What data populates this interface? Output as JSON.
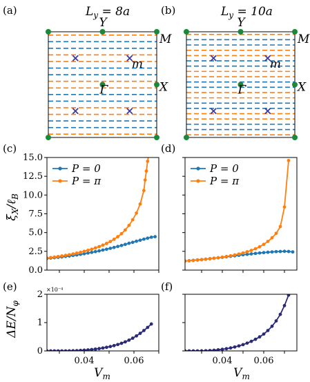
{
  "colors": {
    "blue": "#1f77b4",
    "orange": "#ff7f0e",
    "navy": "#2a2a78",
    "cross": "#3b3b9a",
    "green": "#1a8a3a"
  },
  "bz_panels": [
    {
      "label": "(a)",
      "title": "L_y = 8a",
      "lines": [
        "orange",
        "blue",
        "blue",
        "orange",
        "orange",
        "blue",
        "blue",
        "orange",
        "orange",
        "blue",
        "blue",
        "orange",
        "orange",
        "blue",
        "blue",
        "orange"
      ],
      "points": {
        "Y": "Y",
        "M": "M",
        "X": "X",
        "Gamma": "Γ",
        "m": "m"
      }
    },
    {
      "label": "(b)",
      "title": "L_y = 10a",
      "lines": [
        "orange",
        "blue",
        "blue",
        "orange",
        "orange",
        "blue",
        "blue",
        "orange",
        "orange",
        "blue",
        "blue",
        "orange",
        "orange",
        "blue",
        "blue",
        "orange",
        "orange",
        "blue",
        "blue",
        "orange"
      ],
      "points": {
        "Y": "Y",
        "M": "M",
        "X": "X",
        "Gamma": "Γ",
        "m": "m"
      }
    }
  ],
  "chart_data": [
    {
      "type": "line",
      "panel": "(c)",
      "ylabel": "ξ_X / ℓ_B",
      "xlim": [
        0.025,
        0.07
      ],
      "ylim": [
        0,
        15
      ],
      "yticks": [
        "0.0",
        "2.5",
        "5.0",
        "7.5",
        "10.0",
        "12.5",
        "15.0"
      ],
      "xticks": [],
      "legend": "top-left",
      "series": [
        {
          "name": "P = 0",
          "color": "blue",
          "x": [
            0.025,
            0.0265,
            0.028,
            0.0295,
            0.031,
            0.0325,
            0.034,
            0.0355,
            0.037,
            0.0385,
            0.04,
            0.0415,
            0.043,
            0.0445,
            0.046,
            0.0475,
            0.049,
            0.0505,
            0.052,
            0.0535,
            0.055,
            0.0565,
            0.058,
            0.0595,
            0.061,
            0.0625,
            0.064,
            0.0655,
            0.067,
            0.0685
          ],
          "y": [
            1.55,
            1.6,
            1.65,
            1.7,
            1.75,
            1.82,
            1.88,
            1.95,
            2.02,
            2.1,
            2.18,
            2.27,
            2.36,
            2.46,
            2.56,
            2.67,
            2.78,
            2.9,
            3.02,
            3.15,
            3.28,
            3.42,
            3.57,
            3.7,
            3.85,
            3.98,
            4.12,
            4.25,
            4.38,
            4.45
          ]
        },
        {
          "name": "P = π",
          "color": "orange",
          "x": [
            0.025,
            0.0265,
            0.028,
            0.0295,
            0.031,
            0.0325,
            0.034,
            0.0355,
            0.037,
            0.0385,
            0.04,
            0.0415,
            0.043,
            0.0445,
            0.046,
            0.0475,
            0.049,
            0.0505,
            0.052,
            0.0535,
            0.055,
            0.0565,
            0.058,
            0.0595,
            0.061,
            0.0625,
            0.064,
            0.0645,
            0.065,
            0.0655,
            0.066
          ],
          "y": [
            1.6,
            1.66,
            1.73,
            1.8,
            1.88,
            1.96,
            2.05,
            2.15,
            2.26,
            2.37,
            2.5,
            2.63,
            2.78,
            2.95,
            3.13,
            3.33,
            3.55,
            3.8,
            4.1,
            4.45,
            4.85,
            5.35,
            5.95,
            6.7,
            7.6,
            8.8,
            10.6,
            12.0,
            13.2,
            14.5,
            15.5
          ]
        }
      ]
    },
    {
      "type": "line",
      "panel": "(d)",
      "xlim": [
        0.022,
        0.076
      ],
      "ylim": [
        0,
        15
      ],
      "yticks": [],
      "xticks": [],
      "legend": "top-left",
      "series": [
        {
          "name": "P = 0",
          "color": "blue",
          "x": [
            0.022,
            0.024,
            0.026,
            0.028,
            0.03,
            0.032,
            0.034,
            0.036,
            0.038,
            0.04,
            0.042,
            0.044,
            0.046,
            0.048,
            0.05,
            0.052,
            0.054,
            0.056,
            0.058,
            0.06,
            0.062,
            0.064,
            0.066,
            0.068,
            0.07,
            0.072,
            0.074
          ],
          "y": [
            1.2,
            1.25,
            1.3,
            1.35,
            1.4,
            1.46,
            1.52,
            1.58,
            1.64,
            1.7,
            1.77,
            1.84,
            1.9,
            1.97,
            2.04,
            2.1,
            2.16,
            2.22,
            2.28,
            2.33,
            2.38,
            2.42,
            2.46,
            2.48,
            2.5,
            2.48,
            2.42
          ]
        },
        {
          "name": "P = π",
          "color": "orange",
          "x": [
            0.022,
            0.024,
            0.026,
            0.028,
            0.03,
            0.032,
            0.034,
            0.036,
            0.038,
            0.04,
            0.042,
            0.044,
            0.046,
            0.048,
            0.05,
            0.052,
            0.054,
            0.056,
            0.058,
            0.06,
            0.062,
            0.064,
            0.066,
            0.068,
            0.07,
            0.072
          ],
          "y": [
            1.2,
            1.24,
            1.28,
            1.33,
            1.38,
            1.44,
            1.5,
            1.57,
            1.64,
            1.72,
            1.81,
            1.91,
            2.02,
            2.14,
            2.28,
            2.44,
            2.62,
            2.84,
            3.1,
            3.42,
            3.82,
            4.3,
            4.9,
            5.8,
            8.4,
            14.6
          ]
        }
      ]
    },
    {
      "type": "line",
      "panel": "(e)",
      "ylabel": "ΔE / N_φ",
      "xlabel": "V_m",
      "scale_label": "×10⁻⁴",
      "xlim": [
        0.025,
        0.07
      ],
      "ylim": [
        0,
        2
      ],
      "xticks": [
        "0.04",
        "0.06"
      ],
      "yticks": [
        "0",
        "1",
        "2"
      ],
      "series": [
        {
          "color": "navy",
          "x": [
            0.025,
            0.0265,
            0.028,
            0.0295,
            0.031,
            0.0325,
            0.034,
            0.0355,
            0.037,
            0.0385,
            0.04,
            0.0415,
            0.043,
            0.0445,
            0.046,
            0.0475,
            0.049,
            0.0505,
            0.052,
            0.0535,
            0.055,
            0.0565,
            0.058,
            0.0595,
            0.061,
            0.0625,
            0.064,
            0.0655,
            0.067
          ],
          "y": [
            0.0,
            0.0,
            0.0,
            0.0,
            0.0,
            0.0,
            0.002,
            0.005,
            0.01,
            0.017,
            0.026,
            0.036,
            0.049,
            0.064,
            0.082,
            0.103,
            0.127,
            0.155,
            0.188,
            0.226,
            0.27,
            0.32,
            0.38,
            0.45,
            0.53,
            0.62,
            0.72,
            0.83,
            0.95
          ]
        }
      ]
    },
    {
      "type": "line",
      "panel": "(f)",
      "xlabel": "V_m",
      "xlim": [
        0.022,
        0.076
      ],
      "ylim": [
        0,
        2
      ],
      "xticks": [
        "0.04",
        "0.06"
      ],
      "yticks": [],
      "series": [
        {
          "color": "navy",
          "x": [
            0.022,
            0.024,
            0.026,
            0.028,
            0.03,
            0.032,
            0.034,
            0.036,
            0.038,
            0.04,
            0.042,
            0.044,
            0.046,
            0.048,
            0.05,
            0.052,
            0.054,
            0.056,
            0.058,
            0.06,
            0.062,
            0.064,
            0.066,
            0.068,
            0.07,
            0.072
          ],
          "y": [
            0.0,
            0.0,
            0.0,
            0.0,
            0.002,
            0.006,
            0.013,
            0.024,
            0.038,
            0.056,
            0.078,
            0.105,
            0.138,
            0.177,
            0.222,
            0.275,
            0.338,
            0.41,
            0.495,
            0.595,
            0.72,
            0.87,
            1.06,
            1.29,
            1.6,
            1.97
          ]
        }
      ]
    }
  ]
}
